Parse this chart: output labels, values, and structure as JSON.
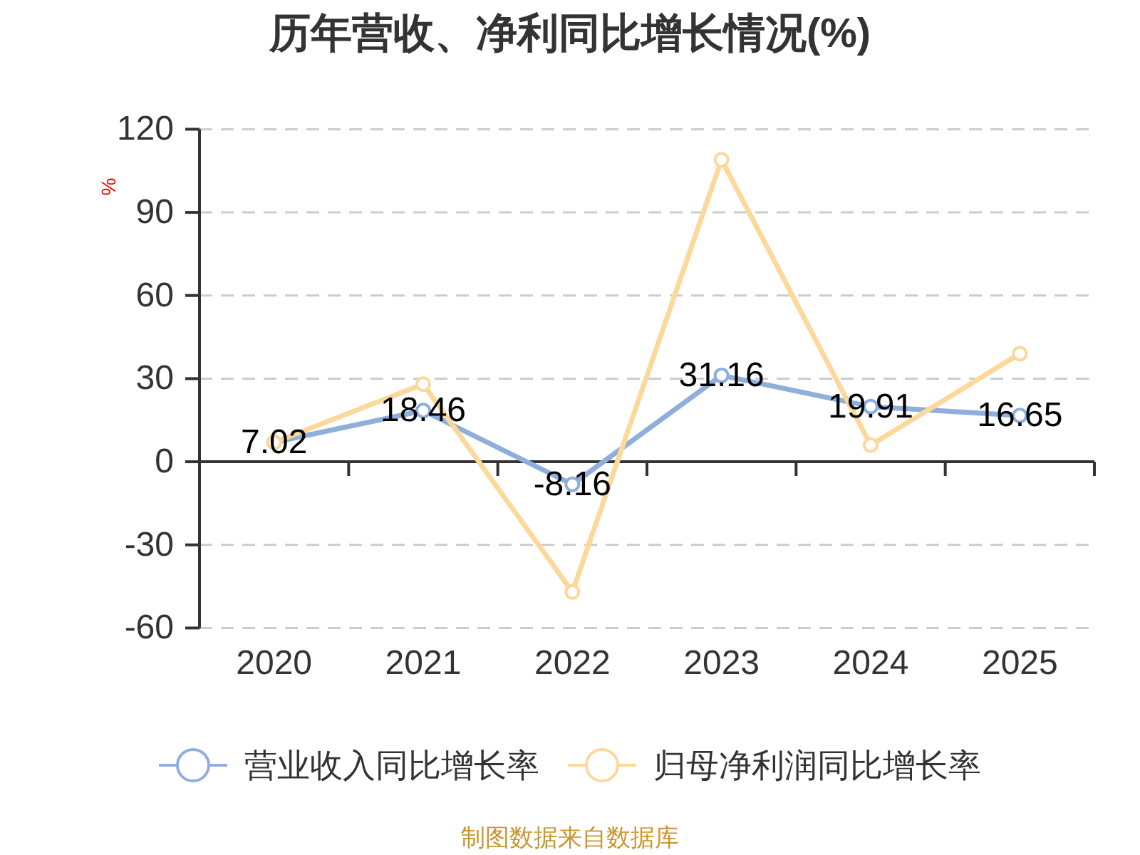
{
  "chart_data": {
    "type": "line",
    "title": "历年营收、净利同比增长情况(%)",
    "ylabel": "%",
    "categories": [
      "2020",
      "2021",
      "2022",
      "2023",
      "2024",
      "2025"
    ],
    "series": [
      {
        "name": "营业收入同比增长率",
        "color": "#8eafdc",
        "values": [
          7.02,
          18.46,
          -8.16,
          31.16,
          19.91,
          16.65
        ],
        "value_labels": [
          "7.02",
          "18.46",
          "-8.16",
          "31.16",
          "19.91",
          "16.65"
        ]
      },
      {
        "name": "归母净利润同比增长率",
        "color": "#fdd89b",
        "values": [
          7,
          28,
          -47,
          109,
          6,
          39
        ]
      }
    ],
    "ylim": [
      -60,
      120
    ],
    "yticks": [
      -60,
      -30,
      0,
      30,
      60,
      90,
      120
    ],
    "grid": "y",
    "legend": "bottom",
    "marker": "circle",
    "line_style": "solid",
    "annotations": [
      "制图数据来自数据库"
    ]
  }
}
